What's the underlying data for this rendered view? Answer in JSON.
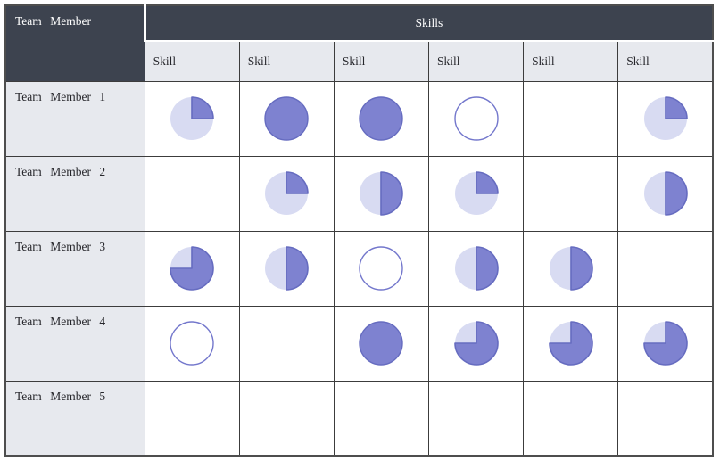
{
  "header": {
    "row_header": "Team Member",
    "group_header": "Skills"
  },
  "colors": {
    "header_bg": "#3d434f",
    "header_text": "#ffffff",
    "label_cell_bg": "#e7e9ee",
    "grid_border": "#3c3c3c",
    "ball_fill": "#7e82d0",
    "ball_stroke": "#666cc0",
    "ball_light": "#d8dbf2",
    "ball_outline": "#7377cc",
    "cell_bg": "#ffffff"
  },
  "chart_data": {
    "type": "table",
    "title": "Skills",
    "row_label_header": "Team Member",
    "columns": [
      "Skill",
      "Skill",
      "Skill",
      "Skill",
      "Skill",
      "Skill"
    ],
    "value_encoding": "harvey-ball percent filled (null = empty cell)",
    "rows": [
      {
        "label": "Team Member 1",
        "values": [
          25,
          100,
          100,
          0,
          null,
          25
        ]
      },
      {
        "label": "Team Member 2",
        "values": [
          null,
          25,
          50,
          25,
          null,
          50
        ]
      },
      {
        "label": "Team Member 3",
        "values": [
          75,
          50,
          0,
          50,
          50,
          null
        ]
      },
      {
        "label": "Team Member 4",
        "values": [
          0,
          null,
          100,
          75,
          75,
          75
        ]
      },
      {
        "label": "Team Member 5",
        "values": [
          null,
          null,
          null,
          null,
          null,
          null
        ]
      }
    ]
  }
}
